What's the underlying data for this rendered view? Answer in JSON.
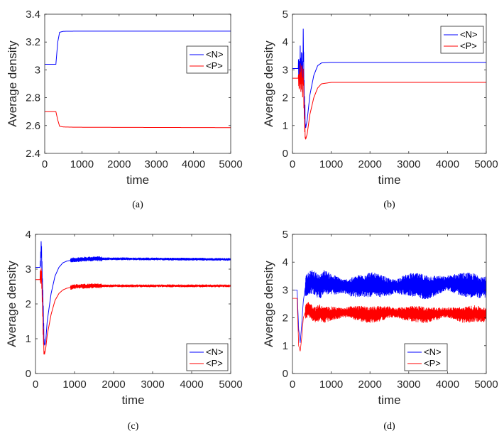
{
  "chart_data": [
    {
      "type": "line",
      "caption": "(a)",
      "xlabel": "time",
      "ylabel": "Average density",
      "xlim": [
        0,
        5000
      ],
      "ylim": [
        2.4,
        3.4
      ],
      "xticks": [
        0,
        1000,
        2000,
        3000,
        4000,
        5000
      ],
      "xtick_labels": [
        "0",
        "1000",
        "2000",
        "3000",
        "4000",
        "5000"
      ],
      "yticks": [
        2.4,
        2.6,
        2.8,
        3.0,
        3.2,
        3.4
      ],
      "ytick_labels": [
        "2.4",
        "2.6",
        "2.8",
        "3",
        "3.2",
        "3.4"
      ],
      "legend_position": "right-middle",
      "series": [
        {
          "name": "<N>",
          "color": "#0000ff",
          "x": [
            0,
            300,
            350,
            400,
            500,
            800,
            2000,
            5000
          ],
          "y": [
            3.04,
            3.04,
            3.2,
            3.27,
            3.277,
            3.278,
            3.278,
            3.278
          ]
        },
        {
          "name": "<P>",
          "color": "#ff0000",
          "x": [
            0,
            300,
            350,
            400,
            500,
            800,
            2000,
            5000
          ],
          "y": [
            2.7,
            2.7,
            2.64,
            2.595,
            2.59,
            2.588,
            2.587,
            2.585
          ]
        }
      ]
    },
    {
      "type": "line",
      "caption": "(b)",
      "xlabel": "time",
      "ylabel": "Average density",
      "xlim": [
        0,
        5000
      ],
      "ylim": [
        0,
        5
      ],
      "xticks": [
        0,
        1000,
        2000,
        3000,
        4000,
        5000
      ],
      "xtick_labels": [
        "0",
        "1000",
        "2000",
        "3000",
        "4000",
        "5000"
      ],
      "yticks": [
        0,
        1,
        2,
        3,
        4,
        5
      ],
      "ytick_labels": [
        "0",
        "1",
        "2",
        "3",
        "4",
        "5"
      ],
      "legend_position": "top-right",
      "series": [
        {
          "name": "<N>",
          "color": "#0000ff",
          "x": [
            0,
            150,
            180,
            200,
            220,
            240,
            260,
            280,
            300,
            320,
            340,
            380,
            450,
            550,
            650,
            750,
            1000,
            5000
          ],
          "y": [
            3.05,
            3.05,
            2.9,
            3.5,
            2.7,
            3.6,
            2.5,
            4.3,
            2.2,
            1.4,
            0.9,
            1.2,
            2.1,
            2.8,
            3.15,
            3.25,
            3.27,
            3.27
          ]
        },
        {
          "name": "<P>",
          "color": "#ff0000",
          "x": [
            0,
            150,
            180,
            200,
            220,
            240,
            260,
            280,
            300,
            320,
            340,
            380,
            450,
            550,
            650,
            750,
            1000,
            5000
          ],
          "y": [
            2.7,
            2.7,
            2.5,
            3.0,
            2.3,
            3.1,
            2.2,
            2.9,
            1.6,
            0.8,
            0.5,
            0.7,
            1.4,
            2.0,
            2.35,
            2.5,
            2.55,
            2.55
          ]
        }
      ]
    },
    {
      "type": "line",
      "caption": "(c)",
      "xlabel": "time",
      "ylabel": "Average density",
      "xlim": [
        0,
        5000
      ],
      "ylim": [
        0,
        4
      ],
      "xticks": [
        0,
        1000,
        2000,
        3000,
        4000,
        5000
      ],
      "xtick_labels": [
        "0",
        "1000",
        "2000",
        "3000",
        "4000",
        "5000"
      ],
      "yticks": [
        0,
        1,
        2,
        3,
        4
      ],
      "ytick_labels": [
        "0",
        "1",
        "2",
        "3",
        "4"
      ],
      "legend_position": "bottom-right",
      "series": [
        {
          "name": "<N>",
          "color": "#0000ff",
          "x": [
            0,
            120,
            150,
            170,
            190,
            210,
            230,
            260,
            300,
            400,
            500,
            600,
            700,
            800,
            1000,
            1500,
            5000
          ],
          "y": [
            3.05,
            3.05,
            3.7,
            2.9,
            2.2,
            1.3,
            0.8,
            0.9,
            1.5,
            2.3,
            2.8,
            3.05,
            3.18,
            3.23,
            3.27,
            3.3,
            3.28
          ]
        },
        {
          "name": "<P>",
          "color": "#ff0000",
          "x": [
            0,
            120,
            150,
            170,
            190,
            210,
            230,
            260,
            300,
            400,
            500,
            600,
            700,
            800,
            1000,
            1500,
            5000
          ],
          "y": [
            2.7,
            2.7,
            2.9,
            2.3,
            1.5,
            0.8,
            0.55,
            0.7,
            1.1,
            1.7,
            2.1,
            2.3,
            2.4,
            2.45,
            2.5,
            2.52,
            2.52
          ]
        }
      ]
    },
    {
      "type": "line",
      "caption": "(d)",
      "xlabel": "time",
      "ylabel": "Average density",
      "xlim": [
        0,
        5000
      ],
      "ylim": [
        0,
        5
      ],
      "xticks": [
        0,
        1000,
        2000,
        3000,
        4000,
        5000
      ],
      "xtick_labels": [
        "0",
        "1000",
        "2000",
        "3000",
        "4000",
        "5000"
      ],
      "yticks": [
        0,
        1,
        2,
        3,
        4,
        5
      ],
      "ytick_labels": [
        "0",
        "1",
        "2",
        "3",
        "4",
        "5"
      ],
      "legend_position": "bottom-right",
      "series": [
        {
          "name": "<N>",
          "color": "#0000ff",
          "x": [
            0,
            120,
            160,
            200,
            240,
            280,
            330,
            400,
            500,
            600,
            700,
            800,
            1000,
            1500,
            2000,
            2500,
            3000,
            3500,
            4000,
            4400,
            4700,
            5000
          ],
          "y": [
            3.0,
            3.0,
            1.6,
            1.1,
            1.8,
            2.6,
            3.1,
            3.2,
            3.3,
            3.2,
            3.1,
            3.3,
            3.2,
            3.1,
            3.2,
            3.1,
            3.2,
            3.1,
            3.25,
            3.2,
            3.15,
            3.1
          ]
        },
        {
          "name": "<P>",
          "color": "#ff0000",
          "x": [
            0,
            120,
            160,
            200,
            240,
            280,
            330,
            400,
            500,
            600,
            700,
            800,
            1000,
            1500,
            2000,
            2500,
            3000,
            3500,
            4000,
            4400,
            4700,
            5000
          ],
          "y": [
            2.7,
            2.7,
            1.0,
            0.8,
            1.3,
            2.0,
            2.2,
            2.3,
            2.2,
            2.1,
            2.2,
            2.1,
            2.15,
            2.2,
            2.1,
            2.2,
            2.15,
            2.1,
            2.2,
            2.1,
            2.15,
            2.1
          ]
        }
      ]
    }
  ]
}
